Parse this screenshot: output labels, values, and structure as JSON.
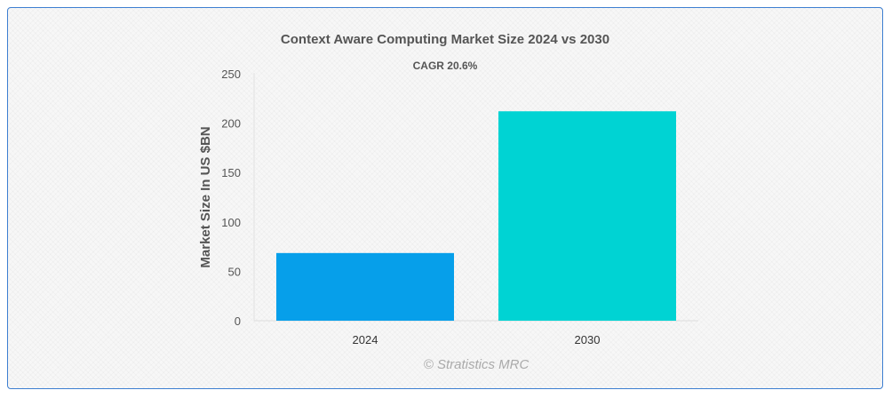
{
  "chart_data": {
    "type": "bar",
    "title": "Context Aware Computing Market Size 2024 vs 2030",
    "subtitle": "CAGR 20.6%",
    "categories": [
      "2024",
      "2030"
    ],
    "values": [
      68.5,
      212
    ],
    "colors": [
      "#069fea",
      "#00d3d3"
    ],
    "xlabel": "",
    "ylabel": "Market Size In US $BN",
    "ylim": [
      0,
      250
    ],
    "yticks": [
      0,
      50,
      100,
      150,
      200,
      250
    ],
    "grid": false,
    "legend": "none"
  },
  "credit": "© Stratistics MRC"
}
